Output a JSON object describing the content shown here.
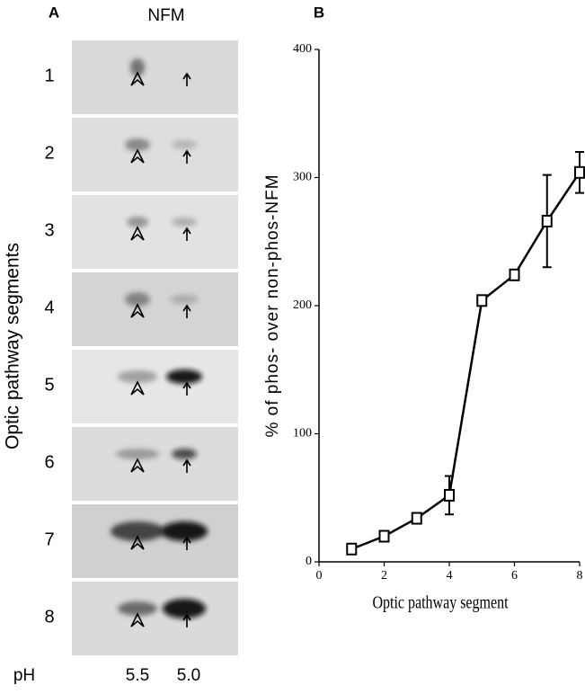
{
  "panel_a": {
    "label": "A",
    "title": "NFM",
    "y_label": "Optic pathway segments",
    "lanes": [
      "1",
      "2",
      "3",
      "4",
      "5",
      "6",
      "7",
      "8"
    ],
    "ph_label": "pH",
    "ph_values": [
      "5.5",
      "5.0"
    ]
  },
  "chart_data": {
    "type": "line",
    "panel_label": "B",
    "x_label": "Optic pathway segment",
    "y_label": "% of phos- over non-phos-NFM",
    "x": [
      1,
      2,
      3,
      4,
      5,
      6,
      7,
      8
    ],
    "series": [
      {
        "color": "#000000",
        "values": [
          10,
          20,
          34,
          52,
          204,
          224,
          266,
          304
        ],
        "errors": [
          null,
          null,
          null,
          15,
          null,
          null,
          36,
          16
        ]
      }
    ],
    "xlim": [
      0,
      8
    ],
    "xticks": [
      0,
      2,
      4,
      6,
      8
    ],
    "ylim": [
      0,
      400
    ],
    "yticks": [
      0,
      100,
      200,
      300,
      400
    ],
    "marker": "square"
  }
}
